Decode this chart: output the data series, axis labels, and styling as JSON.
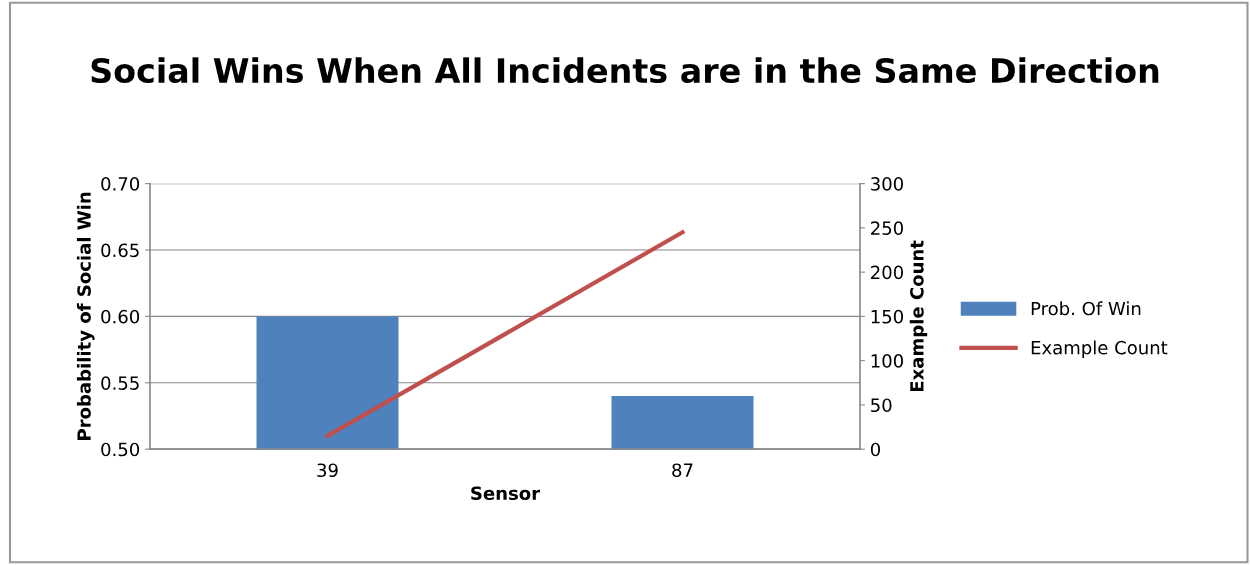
{
  "chart_data": {
    "type": "bar",
    "title": "Social Wins When All Incidents are in the Same Direction",
    "xlabel": "Sensor",
    "ylabel": "Probability of Social Win",
    "y2label": "Example Count",
    "categories": [
      "39",
      "87"
    ],
    "series": [
      {
        "name": "Prob. Of Win",
        "color": "#4f81bd",
        "values": [
          0.6,
          0.54
        ]
      },
      {
        "name": "Example Count",
        "type": "line",
        "axis": "y2",
        "color": "#c0504d",
        "values": [
          15,
          245
        ]
      }
    ],
    "ylim": [
      0.5,
      0.7
    ],
    "yticks": [
      {
        "value": 0.5,
        "label": "0.50"
      },
      {
        "value": 0.55,
        "label": "0.55"
      },
      {
        "value": 0.6,
        "label": "0.60"
      },
      {
        "value": 0.65,
        "label": "0.65"
      },
      {
        "value": 0.7,
        "label": "0.70"
      }
    ],
    "y2lim": [
      0,
      300
    ],
    "y2ticks": [
      0,
      50,
      100,
      150,
      200,
      250,
      300
    ],
    "grid": "y",
    "legend": "right",
    "marker": "none"
  }
}
